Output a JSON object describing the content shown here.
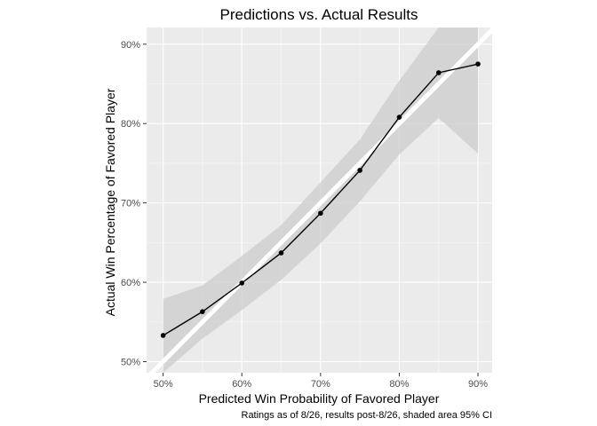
{
  "chart_data": {
    "type": "line",
    "title": "Predictions vs. Actual Results",
    "xlabel": "Predicted Win Probability of Favored Player",
    "ylabel": "Actual Win Percentage of Favored Player",
    "caption": "Ratings as of 8/26, results post-8/26, shaded area 95% CI",
    "x_ticks": [
      "50%",
      "60%",
      "70%",
      "80%",
      "90%"
    ],
    "y_ticks": [
      "50%",
      "60%",
      "70%",
      "80%",
      "90%"
    ],
    "xlim": [
      47.9,
      91.8
    ],
    "ylim": [
      48.6,
      92.1
    ],
    "grid": true,
    "reference_line": "y = x",
    "series": [
      {
        "x": [
          50,
          55,
          60,
          65,
          70,
          75,
          80,
          85,
          90
        ],
        "y": [
          53.3,
          56.3,
          59.9,
          63.7,
          68.7,
          74.1,
          80.8,
          86.4,
          87.5
        ],
        "ci_upper": [
          57.9,
          59.6,
          63.3,
          67.2,
          72.6,
          78.0,
          85.4,
          92.1,
          92.1
        ],
        "ci_lower": [
          48.6,
          52.9,
          56.5,
          60.3,
          64.9,
          70.2,
          76.1,
          80.7,
          76.2
        ]
      }
    ],
    "colors": {
      "panel_background": "#ebebeb",
      "grid_major": "#ffffff",
      "grid_minor": "#f7f7f7",
      "ribbon": "#cccccc",
      "reference_line": "#ffffff",
      "line": "#000000",
      "point": "#000000",
      "tick_text": "#4d4d4d"
    }
  }
}
